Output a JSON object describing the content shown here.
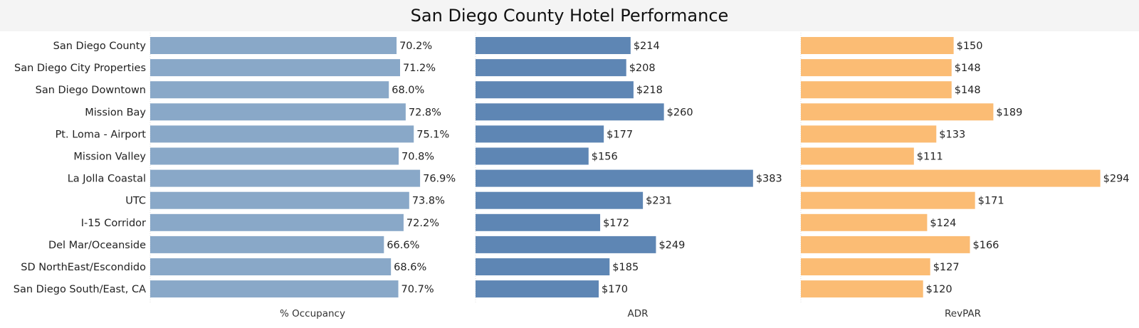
{
  "chart_data": {
    "type": "bar",
    "orientation": "horizontal",
    "title": "San Diego County Hotel Performance",
    "categories": [
      "San Diego County",
      "San Diego City Properties",
      "San Diego Downtown",
      "Mission Bay",
      "Pt. Loma - Airport",
      "Mission Valley",
      "La Jolla Coastal",
      "UTC",
      "I-15 Corridor",
      "Del Mar/Oceanside",
      "SD NorthEast/Escondido",
      "San Diego South/East, CA"
    ],
    "panels": [
      {
        "name": "% Occupancy",
        "color": "#89a8c8",
        "xlim": [
          0,
          92.5
        ],
        "values": [
          70.2,
          71.2,
          68.0,
          72.8,
          75.1,
          70.8,
          76.9,
          73.8,
          72.2,
          66.6,
          68.6,
          70.7
        ],
        "labels": [
          "70.2%",
          "71.2%",
          "68.0%",
          "72.8%",
          "75.1%",
          "70.8%",
          "76.9%",
          "73.8%",
          "72.2%",
          "66.6%",
          "68.6%",
          "70.7%"
        ]
      },
      {
        "name": "ADR",
        "color": "#5e86b4",
        "xlim": [
          0,
          448
        ],
        "values": [
          214,
          208,
          218,
          260,
          177,
          156,
          383,
          231,
          172,
          249,
          185,
          170
        ],
        "labels": [
          "$214",
          "$208",
          "$218",
          "$260",
          "$177",
          "$156",
          "$383",
          "$231",
          "$172",
          "$249",
          "$185",
          "$170"
        ]
      },
      {
        "name": "RevPAR",
        "color": "#fbbc74",
        "xlim": [
          0,
          332
        ],
        "values": [
          150,
          148,
          148,
          189,
          133,
          111,
          294,
          171,
          124,
          166,
          127,
          120
        ],
        "labels": [
          "$150",
          "$148",
          "$148",
          "$189",
          "$133",
          "$111",
          "$294",
          "$171",
          "$124",
          "$166",
          "$127",
          "$120"
        ]
      }
    ],
    "grid": false,
    "legend": "none"
  }
}
